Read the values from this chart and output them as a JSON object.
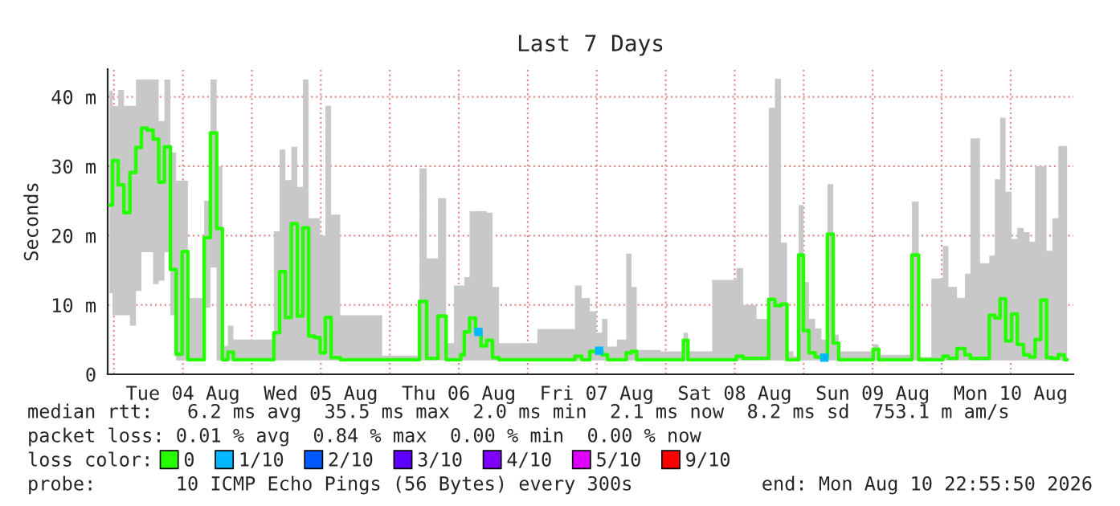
{
  "chart_data": {
    "type": "step",
    "title": "Last 7 Days",
    "ylabel": "Seconds",
    "xlim": [
      "2026-08-03T22:55",
      "2026-08-10T22:55"
    ],
    "xticks": [
      {
        "value": "2026-08-04T00:00",
        "label": null
      },
      {
        "value": "2026-08-04T12:00",
        "label": "Tue 04 Aug"
      },
      {
        "value": "2026-08-05T00:00",
        "label": null
      },
      {
        "value": "2026-08-05T12:00",
        "label": "Wed 05 Aug"
      },
      {
        "value": "2026-08-06T00:00",
        "label": null
      },
      {
        "value": "2026-08-06T12:00",
        "label": "Thu 06 Aug"
      },
      {
        "value": "2026-08-07T00:00",
        "label": null
      },
      {
        "value": "2026-08-07T12:00",
        "label": "Fri 07 Aug"
      },
      {
        "value": "2026-08-08T00:00",
        "label": null
      },
      {
        "value": "2026-08-08T12:00",
        "label": "Sat 08 Aug"
      },
      {
        "value": "2026-08-09T00:00",
        "label": null
      },
      {
        "value": "2026-08-09T12:00",
        "label": "Sun 09 Aug"
      },
      {
        "value": "2026-08-10T00:00",
        "label": null
      },
      {
        "value": "2026-08-10T12:00",
        "label": "Mon 10 Aug"
      }
    ],
    "ylim": [
      0,
      44
    ],
    "yticks": [
      0,
      {
        "value": 10,
        "label": "10 m"
      },
      {
        "value": 20,
        "label": "20 m"
      },
      {
        "value": 30,
        "label": "30 m"
      },
      {
        "value": 40,
        "label": "40 m"
      }
    ],
    "grid": true,
    "legend": "bottom",
    "series": [
      {
        "name": "0",
        "color": "#26ff00",
        "x": [
          "2026-08-03T23:15",
          "2026-08-04T00:15",
          "2026-08-04T01:15",
          "2026-08-04T02:15",
          "2026-08-04T03:20",
          "2026-08-04T04:20",
          "2026-08-04T05:15",
          "2026-08-04T06:20",
          "2026-08-04T07:20",
          "2026-08-04T08:15",
          "2026-08-04T09:20",
          "2026-08-04T10:20",
          "2026-08-04T11:20",
          "2026-08-04T12:25",
          "2026-08-04T13:20",
          "2026-08-04T15:10",
          "2026-08-04T16:15",
          "2026-08-04T17:20",
          "2026-08-04T18:25",
          "2026-08-04T19:20",
          "2026-08-04T20:20",
          "2026-08-04T21:15",
          "2026-08-05T03:20",
          "2026-08-05T04:20",
          "2026-08-05T05:20",
          "2026-08-05T06:20",
          "2026-08-05T07:25",
          "2026-08-05T08:25",
          "2026-08-05T09:20",
          "2026-08-05T10:25",
          "2026-08-05T11:25",
          "2026-08-05T12:20",
          "2026-08-05T13:15",
          "2026-08-05T14:20",
          "2026-08-05T16:25",
          "2026-08-06T04:55",
          "2026-08-06T05:25",
          "2026-08-06T07:25",
          "2026-08-06T09:20",
          "2026-08-06T10:15",
          "2026-08-06T12:05",
          "2026-08-06T12:35",
          "2026-08-06T13:20",
          "2026-08-06T14:25",
          "2026-08-06T15:25",
          "2026-08-06T16:20",
          "2026-08-06T17:20",
          "2026-08-06T18:25",
          "2026-08-06T19:35",
          "2026-08-07T07:45",
          "2026-08-07T08:40",
          "2026-08-07T10:05",
          "2026-08-07T11:30",
          "2026-08-07T12:25",
          "2026-08-07T13:25",
          "2026-08-07T14:20",
          "2026-08-07T16:40",
          "2026-08-07T17:35",
          "2026-08-07T18:30",
          "2026-08-07T19:25",
          "2026-08-08T02:45",
          "2026-08-08T03:25",
          "2026-08-08T04:20",
          "2026-08-08T11:50",
          "2026-08-08T12:45",
          "2026-08-08T14:10",
          "2026-08-08T17:25",
          "2026-08-08T18:25",
          "2026-08-08T19:35",
          "2026-08-08T20:30",
          "2026-08-08T21:40",
          "2026-08-08T22:45",
          "2026-08-08T23:30",
          "2026-08-09T00:25",
          "2026-08-09T01:25",
          "2026-08-09T02:35",
          "2026-08-09T03:35",
          "2026-08-09T04:40",
          "2026-08-09T05:35",
          "2026-08-09T06:35",
          "2026-08-09T11:40",
          "2026-08-09T12:30",
          "2026-08-09T13:35",
          "2026-08-09T18:15",
          "2026-08-09T19:25",
          "2026-08-09T20:35",
          "2026-08-09T23:50",
          "2026-08-10T00:35",
          "2026-08-10T01:45",
          "2026-08-10T03:35",
          "2026-08-10T04:30",
          "2026-08-10T05:30",
          "2026-08-10T07:50",
          "2026-08-10T08:45",
          "2026-08-10T09:45",
          "2026-08-10T10:35",
          "2026-08-10T11:40",
          "2026-08-10T12:40",
          "2026-08-10T13:40",
          "2026-08-10T14:50",
          "2026-08-10T15:45",
          "2026-08-10T16:45",
          "2026-08-10T17:45",
          "2026-08-10T18:45",
          "2026-08-10T19:45",
          "2026-08-10T20:50",
          "2026-08-10T21:50"
        ],
        "values": [
          24.4,
          30.8,
          27.3,
          23.3,
          29.1,
          32.7,
          35.5,
          35.2,
          33.9,
          27.7,
          32.8,
          15.1,
          2.9,
          17.7,
          2.1,
          2.1,
          19.7,
          34.8,
          21.0,
          2.1,
          3.2,
          2.1,
          2.1,
          6.0,
          14.8,
          8.2,
          21.7,
          8.4,
          21.1,
          5.5,
          5.3,
          3.1,
          8.2,
          2.4,
          2.1,
          2.1,
          10.5,
          2.3,
          8.4,
          2.1,
          2.1,
          2.8,
          6.1,
          8.1,
          6.1,
          4.1,
          4.9,
          2.4,
          2.1,
          2.1,
          2.6,
          2.1,
          3.3,
          3.4,
          2.8,
          2.1,
          2.1,
          3.1,
          3.3,
          2.1,
          2.1,
          4.9,
          2.1,
          2.1,
          2.6,
          2.3,
          2.3,
          10.8,
          9.9,
          10.1,
          2.1,
          2.1,
          17.2,
          6.3,
          3.1,
          2.5,
          2.4,
          20.2,
          4.5,
          2.1,
          2.1,
          3.6,
          2.1,
          2.1,
          17.2,
          2.1,
          2.1,
          2.6,
          2.3,
          3.7,
          2.8,
          2.3,
          2.3,
          8.5,
          8.1,
          10.9,
          4.8,
          8.7,
          4.3,
          2.8,
          2.5,
          5.0,
          10.7,
          2.4,
          2.3,
          2.8,
          2.1
        ],
        "lower": [
          11.7,
          8.5,
          8.5,
          8.5,
          7.0,
          12.0,
          17.6,
          17.6,
          13.0,
          13.5,
          17.6,
          8.5,
          2.0,
          2.0,
          2.0,
          2.0,
          9.6,
          15.4,
          2.0,
          2.0,
          2.0,
          2.0,
          2.0,
          2.0,
          2.0,
          2.0,
          2.0,
          2.0,
          2.0,
          2.0,
          2.0,
          2.0,
          2.0,
          2.0,
          2.0,
          2.0,
          2.0,
          2.0,
          2.0,
          2.0,
          2.0,
          2.0,
          2.0,
          2.0,
          2.0,
          2.0,
          2.0,
          2.0,
          2.0,
          2.0,
          2.0,
          2.0,
          2.0,
          2.0,
          2.0,
          2.0,
          2.0,
          2.0,
          2.0,
          2.0,
          2.0,
          2.0,
          2.0,
          2.0,
          2.0,
          2.0,
          2.0,
          2.0,
          2.0,
          2.0,
          2.0,
          2.0,
          2.0,
          2.0,
          2.0,
          2.0,
          2.0,
          2.0,
          2.0,
          2.0,
          2.0,
          2.0,
          2.0,
          2.0,
          2.0,
          2.0,
          2.0,
          2.0,
          2.0,
          2.0,
          2.0,
          2.0,
          2.0,
          2.0,
          2.0,
          2.0,
          2.0,
          2.0,
          2.0,
          2.0,
          2.0,
          2.0,
          2.0,
          2.0,
          2.0,
          2.0,
          2.0
        ],
        "upper": [
          40.9,
          38.7,
          41.0,
          38.7,
          38.7,
          42.5,
          42.5,
          42.5,
          42.5,
          36.5,
          42.5,
          32.0,
          27.9,
          27.9,
          11.0,
          11.0,
          25.0,
          42.5,
          30.0,
          4.1,
          7.0,
          5.0,
          5.0,
          20.6,
          32.4,
          28.0,
          32.8,
          27.0,
          42.5,
          22.5,
          22.5,
          20.0,
          38.7,
          23.0,
          8.5,
          2.7,
          29.7,
          16.7,
          25.4,
          4.5,
          12.8,
          12.8,
          14.0,
          23.5,
          23.5,
          23.5,
          23.3,
          12.6,
          4.5,
          6.5,
          12.8,
          11.0,
          9.1,
          6.0,
          8.0,
          4.0,
          5.0,
          17.4,
          12.6,
          3.5,
          3.3,
          6.0,
          3.3,
          13.6,
          15.3,
          10.0,
          8.0,
          38.4,
          42.6,
          19.0,
          3.3,
          2.6,
          24.4,
          13.3,
          8.0,
          6.6,
          5.0,
          27.4,
          5.7,
          3.3,
          3.3,
          4.3,
          2.8,
          2.8,
          24.9,
          2.5,
          13.8,
          18.5,
          12.6,
          11.0,
          14.5,
          34.0,
          16.0,
          17.1,
          28.1,
          37.0,
          26.3,
          19.5,
          21.1,
          20.5,
          19.1,
          30.0,
          30.0,
          17.8,
          22.5,
          32.9,
          32.9
        ]
      },
      {
        "name": "1/10",
        "type": "scatter",
        "color": "#00b8ff",
        "x": [
          "2026-08-06T15:25",
          "2026-08-07T12:25",
          "2026-08-09T03:35"
        ],
        "values": [
          6.1,
          3.4,
          2.4
        ]
      },
      {
        "name": "2/10",
        "type": "scatter",
        "color": "#0059ff"
      },
      {
        "name": "3/10",
        "type": "scatter",
        "color": "#5e00ff"
      },
      {
        "name": "4/10",
        "type": "scatter",
        "color": "#7e00ff"
      },
      {
        "name": "5/10",
        "type": "scatter",
        "color": "#dd00ff"
      },
      {
        "name": "9/10",
        "type": "scatter",
        "color": "#ff0000"
      }
    ],
    "annotations": [
      "median rtt:   6.2 ms avg  35.5 ms max  2.0 ms min  2.1 ms now  8.2 ms sd  753.1 m am/s",
      "packet loss: 0.01 % avg  0.84 % max  0.00 % min  0.00 % now",
      "loss color:",
      "probe:       10 ICMP Echo Pings (56 Bytes) every 300s",
      "end: Mon Aug 10 22:55:50 2026"
    ]
  }
}
